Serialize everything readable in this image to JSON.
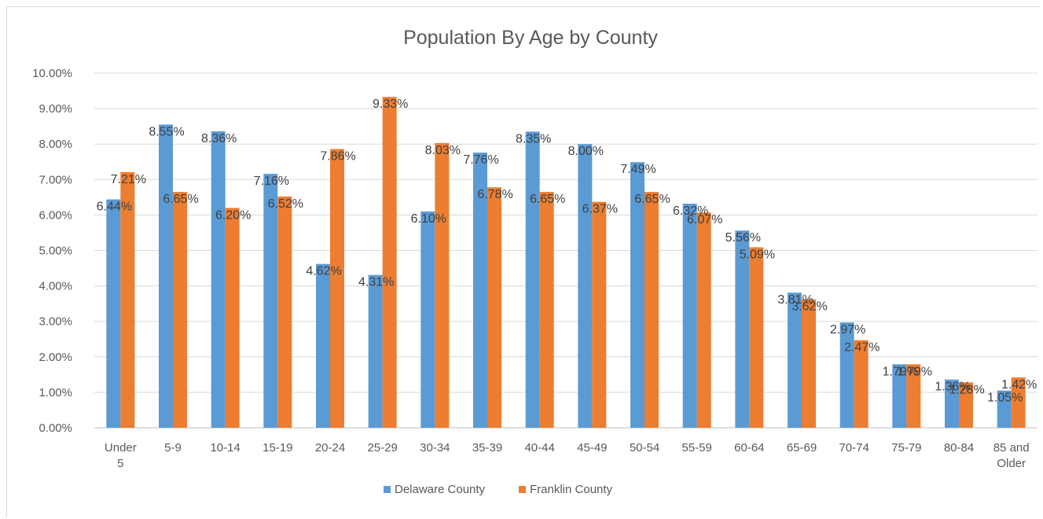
{
  "chart_data": {
    "type": "bar",
    "title": "Population By Age by County",
    "xlabel": "",
    "ylabel": "",
    "ylim": [
      0,
      10
    ],
    "yticks": [
      "0.00%",
      "1.00%",
      "2.00%",
      "3.00%",
      "4.00%",
      "5.00%",
      "6.00%",
      "7.00%",
      "8.00%",
      "9.00%",
      "10.00%"
    ],
    "categories": [
      "Under 5",
      "5-9",
      "10-14",
      "15-19",
      "20-24",
      "25-29",
      "30-34",
      "35-39",
      "40-44",
      "45-49",
      "50-54",
      "55-59",
      "60-64",
      "65-69",
      "70-74",
      "75-79",
      "80-84",
      "85 and Older"
    ],
    "series": [
      {
        "name": "Delaware County",
        "color": "#5b9bd5",
        "values": [
          6.44,
          8.55,
          8.36,
          7.16,
          4.62,
          4.31,
          6.1,
          7.76,
          8.35,
          8.0,
          7.49,
          6.32,
          5.56,
          3.81,
          2.97,
          1.79,
          1.36,
          1.05
        ],
        "labels": [
          "6.44%",
          "8.55%",
          "8.36%",
          "7.16%",
          "4.62%",
          "4.31%",
          "6.10%",
          "7.76%",
          "8.35%",
          "8.00%",
          "7.49%",
          "6.32%",
          "5.56%",
          "3.81%",
          "2.97%",
          "1.79%",
          "1.36%",
          "1.05%"
        ]
      },
      {
        "name": "Franklin County",
        "color": "#ed7d31",
        "values": [
          7.21,
          6.65,
          6.2,
          6.52,
          7.86,
          9.33,
          8.03,
          6.78,
          6.65,
          6.37,
          6.65,
          6.07,
          5.09,
          3.62,
          2.47,
          1.79,
          1.28,
          1.42
        ],
        "labels": [
          "7.21%",
          "6.65%",
          "6.20%",
          "6.52%",
          "7.86%",
          "9.33%",
          "8.03%",
          "6.78%",
          "6.65%",
          "6.37%",
          "6.65%",
          "6.07%",
          "5.09%",
          "3.62%",
          "2.47%",
          "1.79%",
          "1.28%",
          "1.42%"
        ]
      }
    ],
    "grid": true,
    "legend": "bottom"
  }
}
